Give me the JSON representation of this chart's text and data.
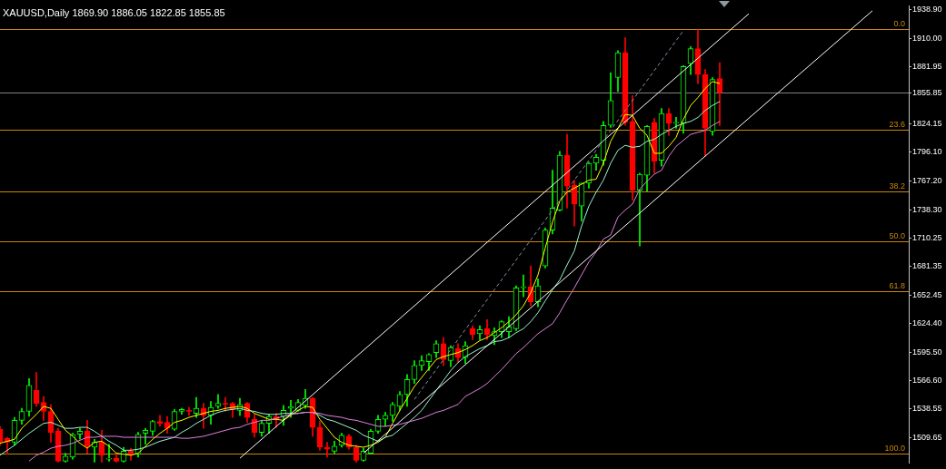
{
  "chart_data": {
    "type": "candlestick",
    "title": "XAUUSD,Daily 1869.90 1886.05 1822.85 1855.85",
    "categories": [
      null,
      null,
      null,
      null,
      null,
      null,
      null,
      null,
      null,
      null,
      null,
      null,
      null,
      null,
      null,
      null,
      null,
      null,
      null,
      null,
      null,
      null,
      null,
      null,
      null,
      null,
      null,
      null,
      null,
      null,
      null,
      null,
      null,
      null,
      null,
      null,
      null,
      null,
      null,
      null,
      null,
      null,
      null,
      null,
      null,
      null,
      null,
      null,
      null,
      null,
      null,
      null,
      null,
      null,
      null,
      null,
      null,
      null,
      null,
      null,
      null,
      null,
      null,
      null,
      null,
      null,
      null,
      null,
      null,
      null,
      null,
      null,
      null,
      null,
      null,
      null,
      null,
      null,
      null,
      null,
      null,
      null,
      null,
      null,
      null,
      null,
      null,
      null,
      null,
      null,
      null,
      null,
      null,
      null,
      null,
      null,
      null,
      null,
      null,
      null,
      null,
      null,
      null,
      null,
      null,
      null,
      null,
      null,
      null,
      null,
      null,
      null,
      null,
      null,
      null,
      null,
      null,
      null,
      null,
      null,
      null,
      null,
      null,
      null,
      null,
      null
    ],
    "ohlc": [
      [
        1518,
        1521,
        1502,
        1505
      ],
      [
        1509,
        1510,
        1493,
        1505
      ],
      [
        1505,
        1530,
        1502,
        1527
      ],
      [
        1527,
        1539,
        1523,
        1536
      ],
      [
        1536,
        1569,
        1531,
        1562
      ],
      [
        1557,
        1575,
        1541,
        1544
      ],
      [
        1545,
        1551,
        1527,
        1536
      ],
      [
        1536,
        1543,
        1505,
        1515
      ],
      [
        1516,
        1519,
        1485,
        1486
      ],
      [
        1486,
        1494,
        1485,
        1491
      ],
      [
        1490,
        1514,
        1488,
        1513
      ],
      [
        1513,
        1519,
        1508,
        1516
      ],
      [
        1516,
        1527,
        1494,
        1501
      ],
      [
        1500,
        1508,
        1485,
        1505
      ],
      [
        1505,
        1517,
        1485,
        1492
      ],
      [
        1488,
        1503,
        1486,
        1489
      ],
      [
        1489,
        1494,
        1485,
        1486
      ],
      [
        1486,
        1500,
        1485,
        1496
      ],
      [
        1496,
        1499,
        1487,
        1493
      ],
      [
        1493,
        1515,
        1490,
        1513
      ],
      [
        1514,
        1519,
        1503,
        1517
      ],
      [
        1516,
        1527,
        1512,
        1526
      ],
      [
        1526,
        1532,
        1521,
        1524
      ],
      [
        1525,
        1531,
        1514,
        1519
      ],
      [
        1518,
        1538,
        1517,
        1536
      ],
      [
        1536,
        1539,
        1533,
        1538
      ],
      [
        1537,
        1540,
        1532,
        1536
      ],
      [
        1534,
        1550,
        1530,
        1539
      ],
      [
        1539,
        1544,
        1519,
        1532
      ],
      [
        1532,
        1546,
        1523,
        1540
      ],
      [
        1541,
        1553,
        1539,
        1544
      ],
      [
        1544,
        1550,
        1536,
        1543
      ],
      [
        1544,
        1545,
        1530,
        1538
      ],
      [
        1537,
        1549,
        1532,
        1543
      ],
      [
        1544,
        1545,
        1525,
        1530
      ],
      [
        1528,
        1533,
        1510,
        1515
      ],
      [
        1515,
        1527,
        1511,
        1524
      ],
      [
        1524,
        1533,
        1514,
        1531
      ],
      [
        1531,
        1534,
        1520,
        1528
      ],
      [
        1531,
        1542,
        1522,
        1537
      ],
      [
        1539,
        1547,
        1530,
        1541
      ],
      [
        1537,
        1548,
        1536,
        1545
      ],
      [
        1542,
        1558,
        1539,
        1549
      ],
      [
        1549,
        1550,
        1511,
        1520
      ],
      [
        1520,
        1526,
        1497,
        1500
      ],
      [
        1500,
        1505,
        1490,
        1498
      ],
      [
        1496,
        1506,
        1494,
        1501
      ],
      [
        1502,
        1514,
        1500,
        1512
      ],
      [
        1511,
        1513,
        1498,
        1500
      ],
      [
        1500,
        1502,
        1485,
        1487
      ],
      [
        1487,
        1499,
        1486,
        1496
      ],
      [
        1494,
        1518,
        1493,
        1516
      ],
      [
        1516,
        1532,
        1514,
        1528
      ],
      [
        1528,
        1535,
        1521,
        1532
      ],
      [
        1532,
        1545,
        1526,
        1543
      ],
      [
        1541,
        1556,
        1537,
        1553
      ],
      [
        1553,
        1573,
        1541,
        1568
      ],
      [
        1568,
        1587,
        1564,
        1582
      ],
      [
        1582,
        1592,
        1577,
        1587
      ],
      [
        1586,
        1594,
        1577,
        1593
      ],
      [
        1595,
        1607,
        1590,
        1604
      ],
      [
        1604,
        1610,
        1582,
        1588
      ],
      [
        1587,
        1602,
        1581,
        1600
      ],
      [
        1599,
        1604,
        1585,
        1590
      ],
      [
        1590,
        1606,
        1584,
        1602
      ],
      [
        1619,
        1622,
        1608,
        1613
      ],
      [
        1614,
        1622,
        1608,
        1618
      ],
      [
        1619,
        1628,
        1608,
        1613
      ],
      [
        1612,
        1620,
        1603,
        1616
      ],
      [
        1616,
        1627,
        1610,
        1626
      ],
      [
        1616,
        1631,
        1610,
        1621
      ],
      [
        1619,
        1662,
        1617,
        1660
      ],
      [
        1660,
        1673,
        1651,
        1661
      ],
      [
        1661,
        1682,
        1642,
        1646
      ],
      [
        1646,
        1669,
        1641,
        1662
      ],
      [
        1682,
        1720,
        1680,
        1718
      ],
      [
        1718,
        1778,
        1714,
        1740
      ],
      [
        1738,
        1797,
        1737,
        1793
      ],
      [
        1793,
        1814,
        1740,
        1762
      ],
      [
        1763,
        1768,
        1722,
        1744
      ],
      [
        1742,
        1765,
        1727,
        1765
      ],
      [
        1765,
        1786,
        1760,
        1785
      ],
      [
        1785,
        1794,
        1778,
        1791
      ],
      [
        1788,
        1827,
        1783,
        1823
      ],
      [
        1823,
        1876,
        1821,
        1848
      ],
      [
        1871,
        1898,
        1857,
        1896
      ],
      [
        1896,
        1911,
        1823,
        1826
      ],
      [
        1827,
        1853,
        1748,
        1758
      ],
      [
        1758,
        1775,
        1702,
        1774
      ],
      [
        1773,
        1823,
        1757,
        1822
      ],
      [
        1826,
        1830,
        1775,
        1787
      ],
      [
        1788,
        1840,
        1782,
        1835
      ],
      [
        1835,
        1840,
        1813,
        1825
      ],
      [
        1825,
        1831,
        1820,
        1826
      ],
      [
        1825,
        1883,
        1815,
        1882
      ],
      [
        1885,
        1902,
        1874,
        1900
      ],
      [
        1900,
        1919,
        1865,
        1874
      ],
      [
        1874,
        1879,
        1792,
        1820
      ],
      [
        1817,
        1871,
        1813,
        1869
      ],
      [
        1869.9,
        1886.05,
        1822.85,
        1855.85
      ],
      null,
      null,
      null,
      null,
      null,
      null,
      null,
      null,
      null,
      null,
      null,
      null,
      null,
      null,
      null,
      null,
      null,
      null,
      null,
      null,
      null,
      null,
      null,
      null,
      null,
      null
    ],
    "colors": [
      "#ff0000",
      "#ff0000",
      "#00ff00",
      "#00ff00",
      "#00ff00",
      "#ff0000",
      "#ff0000",
      "#ff0000",
      "#ff0000",
      "#00ff00",
      "#00ff00",
      "#00ff00",
      "#ff0000",
      "#00ff00",
      "#ff0000",
      "#00ff00",
      "#ff0000",
      "#00ff00",
      "#ff0000",
      "#00ff00",
      "#00ff00",
      "#00ff00",
      "#ff0000",
      "#ff0000",
      "#00ff00",
      "#00ff00",
      "#ff0000",
      "#00ff00",
      "#ff0000",
      "#00ff00",
      "#00ff00",
      "#ff0000",
      "#ff0000",
      "#00ff00",
      "#ff0000",
      "#ff0000",
      "#00ff00",
      "#00ff00",
      "#ff0000",
      "#00ff00",
      "#00ff00",
      "#00ff00",
      "#00ff00",
      "#ff0000",
      "#ff0000",
      "#ff0000",
      "#00ff00",
      "#00ff00",
      "#ff0000",
      "#ff0000",
      "#00ff00",
      "#00ff00",
      "#00ff00",
      "#00ff00",
      "#00ff00",
      "#00ff00",
      "#00ff00",
      "#00ff00",
      "#00ff00",
      "#00ff00",
      "#00ff00",
      "#ff0000",
      "#00ff00",
      "#ff0000",
      "#00ff00",
      "#ff0000",
      "#00ff00",
      "#ff0000",
      "#00ff00",
      "#00ff00",
      "#00ff00",
      "#00ff00",
      "#00ff00",
      "#ff0000",
      "#00ff00",
      "#00ff00",
      "#00ff00",
      "#00ff00",
      "#ff0000",
      "#ff0000",
      "#00ff00",
      "#00ff00",
      "#00ff00",
      "#00ff00",
      "#00ff00",
      "#00ff00",
      "#ff0000",
      "#ff0000",
      "#00ff00",
      "#00ff00",
      "#ff0000",
      "#00ff00",
      "#ff0000",
      "#00ff00",
      "#00ff00",
      "#00ff00",
      "#ff0000",
      "#ff0000",
      "#00ff00",
      "#ff0000",
      null,
      null,
      null,
      null,
      null,
      null,
      null,
      null,
      null,
      null,
      null,
      null,
      null,
      null,
      null,
      null,
      null,
      null,
      null,
      null,
      null,
      null,
      null,
      null,
      null,
      null
    ],
    "series": [
      {
        "type": "line",
        "color": "#ffff00",
        "values": [
          1504,
          1506,
          1508,
          1519,
          1526,
          1533,
          1541,
          1539,
          1528,
          1517,
          1511,
          1504,
          1499,
          1505,
          1506,
          1501,
          1494,
          1493,
          1492,
          1494,
          1501,
          1508,
          1514,
          1519,
          1525,
          1527,
          1530,
          1532,
          1534,
          1536,
          1537,
          1539,
          1540,
          1541,
          1539,
          1534,
          1531,
          1528,
          1528,
          1527,
          1532,
          1537,
          1541,
          1540,
          1528,
          1519,
          1510,
          1505,
          1502,
          1501,
          1500,
          1502,
          1505,
          1510,
          1524,
          1537,
          1549,
          1561,
          1570,
          1579,
          1588,
          1591,
          1593,
          1595,
          1598,
          1602,
          1607,
          1610,
          1615,
          1620,
          1626,
          1633,
          1642,
          1655,
          1673,
          1700,
          1726,
          1747,
          1756,
          1760,
          1764,
          1768,
          1769,
          1785,
          1807,
          1820,
          1834,
          1833,
          1820,
          1813,
          1795,
          1795,
          1802,
          1811,
          1829,
          1843,
          1851,
          1860,
          1867,
          1865,
          null,
          null,
          null,
          null,
          null,
          null,
          null,
          null,
          null,
          null,
          null,
          null,
          null,
          null,
          null,
          null,
          null,
          null,
          null,
          null,
          null,
          null,
          null,
          null,
          null,
          null
        ]
      },
      {
        "type": "line",
        "color": "#98f5d0",
        "values": [
          1492,
          1497,
          1502,
          1508,
          1514,
          1519,
          1524,
          1525,
          1522,
          1519,
          1519,
          1520,
          1520,
          1516,
          1511,
          1506,
          1502,
          1497,
          1497,
          1498,
          1500,
          1503,
          1506,
          1508,
          1510,
          1515,
          1519,
          1524,
          1528,
          1532,
          1535,
          1537,
          1538,
          1539,
          1537,
          1536,
          1534,
          1533,
          1533,
          1534,
          1534,
          1534,
          1535,
          1535,
          1532,
          1528,
          1526,
          1523,
          1520,
          1517,
          1512,
          1509,
          1506,
          1510,
          1512,
          1518,
          1524,
          1530,
          1537,
          1547,
          1557,
          1567,
          1577,
          1585,
          1591,
          1595,
          1599,
          1602,
          1606,
          1607,
          1610,
          1615,
          1619,
          1626,
          1635,
          1647,
          1658,
          1668,
          1683,
          1697,
          1722,
          1742,
          1756,
          1768,
          1785,
          1798,
          1803,
          1801,
          1802,
          1807,
          1809,
          1814,
          1818,
          1822,
          1825,
          1827,
          1831,
          1838,
          1843,
          1847,
          null,
          null,
          null,
          null,
          null,
          null,
          null,
          null,
          null,
          null,
          null,
          null,
          null,
          null,
          null,
          null,
          null,
          null,
          null,
          null,
          null,
          null,
          null,
          null,
          null,
          null
        ]
      },
      {
        "type": "line",
        "color": "#e080e0",
        "values": [
          null,
          null,
          null,
          null,
          1486,
          1492,
          1495,
          1499,
          1501,
          1502,
          1504,
          1507,
          1510,
          1510,
          1511,
          1511,
          1511,
          1510,
          1510,
          1510,
          1510,
          1510,
          1510,
          1510,
          1510,
          1509,
          1509,
          1510,
          1511,
          1513,
          1515,
          1517,
          1519,
          1520,
          1523,
          1525,
          1527,
          1527,
          1529,
          1531,
          1533,
          1534,
          1535,
          1535,
          1534,
          1532,
          1531,
          1530,
          1528,
          1527,
          1525,
          1523,
          1521,
          1521,
          1522,
          1523,
          1525,
          1527,
          1529,
          1532,
          1535,
          1537,
          1540,
          1543,
          1551,
          1555,
          1559,
          1564,
          1571,
          1578,
          1586,
          1594,
          1600,
          1607,
          1614,
          1619,
          1624,
          1635,
          1648,
          1660,
          1673,
          1686,
          1696,
          1709,
          1713,
          1731,
          1738,
          1744,
          1759,
          1767,
          1774,
          1778,
          1792,
          1802,
          1808,
          1814,
          1816,
          1818,
          1823,
          1827,
          null,
          null,
          null,
          null,
          null,
          null,
          null,
          null,
          null,
          null,
          null,
          null,
          null,
          null,
          null,
          null,
          null,
          null,
          null,
          null,
          null,
          null,
          null,
          null,
          null,
          null
        ]
      },
      {
        "type": "line",
        "color": "#ffffff",
        "values": [
          null,
          null,
          null,
          null,
          null,
          null,
          null,
          null,
          null,
          null,
          null,
          null,
          null,
          null,
          null,
          null,
          null,
          null,
          null,
          null,
          null,
          null,
          null,
          null,
          null,
          null,
          null,
          null,
          null,
          null,
          null,
          null,
          null,
          1489,
          null,
          null,
          null,
          null,
          null,
          null,
          null,
          null,
          null,
          null,
          null,
          null,
          null,
          null,
          null,
          null,
          null,
          null,
          null,
          null,
          null,
          null,
          null,
          null,
          null,
          null,
          null,
          null,
          null,
          null,
          null,
          null,
          null,
          null,
          null,
          null,
          null,
          null,
          null,
          null,
          null,
          null,
          null,
          null,
          null,
          null,
          null,
          null,
          null,
          null,
          null,
          null,
          null,
          null,
          null,
          null,
          null,
          null,
          null,
          null,
          null,
          null,
          null,
          null,
          null,
          null,
          null,
          null,
          null,
          1935,
          null,
          null,
          null,
          null,
          null,
          null,
          null,
          null,
          null,
          null,
          null,
          null,
          null,
          null,
          null,
          null,
          null,
          null,
          null,
          null,
          null,
          null
        ]
      },
      {
        "type": "line",
        "color": "#ffffff",
        "values": [
          null,
          null,
          null,
          null,
          null,
          null,
          null,
          null,
          null,
          null,
          null,
          null,
          null,
          null,
          null,
          null,
          null,
          null,
          null,
          null,
          null,
          null,
          null,
          null,
          null,
          null,
          null,
          null,
          null,
          null,
          null,
          null,
          null,
          null,
          null,
          null,
          null,
          null,
          null,
          null,
          null,
          null,
          null,
          null,
          null,
          null,
          null,
          null,
          null,
          null,
          1494,
          null,
          null,
          null,
          null,
          null,
          null,
          null,
          null,
          null,
          null,
          null,
          null,
          null,
          null,
          null,
          null,
          null,
          null,
          null,
          null,
          null,
          null,
          null,
          null,
          null,
          null,
          null,
          null,
          null,
          null,
          null,
          null,
          null,
          null,
          null,
          null,
          null,
          null,
          null,
          null,
          null,
          null,
          null,
          null,
          null,
          null,
          null,
          null,
          null,
          null,
          null,
          null,
          null,
          null,
          null,
          null,
          null,
          null,
          null,
          null,
          null,
          null,
          null,
          null,
          null,
          null,
          null,
          null,
          null,
          1938,
          null,
          null,
          null,
          null,
          null
        ]
      },
      {
        "type": "line",
        "color": "#8090a8",
        "line_style": "dashed",
        "values": [
          null,
          null,
          null,
          null,
          null,
          null,
          null,
          null,
          null,
          null,
          null,
          null,
          null,
          null,
          null,
          null,
          null,
          null,
          null,
          null,
          null,
          null,
          null,
          null,
          null,
          null,
          null,
          null,
          null,
          null,
          null,
          null,
          null,
          null,
          null,
          null,
          null,
          null,
          null,
          null,
          null,
          null,
          null,
          null,
          null,
          null,
          null,
          null,
          null,
          null,
          null,
          null,
          null,
          null,
          null,
          null,
          null,
          1548,
          null,
          null,
          null,
          null,
          null,
          null,
          null,
          null,
          null,
          null,
          null,
          null,
          null,
          null,
          null,
          null,
          null,
          null,
          null,
          null,
          null,
          null,
          null,
          null,
          null,
          null,
          null,
          null,
          null,
          null,
          null,
          null,
          null,
          null,
          null,
          null,
          1918,
          null,
          null,
          null,
          null,
          null,
          null,
          null,
          null,
          null,
          null,
          null,
          null,
          null,
          null,
          null,
          null,
          null,
          null,
          null,
          null,
          null,
          null,
          null,
          null,
          null,
          null,
          null,
          null,
          null,
          null,
          null
        ]
      }
    ],
    "ylim": [
      1484,
      1943
    ],
    "yticks": [
      {
        "value": 1509.65,
        "label": "1509.65"
      },
      {
        "value": 1538.55,
        "label": "1538.55"
      },
      {
        "value": 1566.6,
        "label": "1566.60"
      },
      {
        "value": 1595.5,
        "label": "1595.50"
      },
      {
        "value": 1624.4,
        "label": "1624.40"
      },
      {
        "value": 1652.45,
        "label": "1652.45"
      },
      {
        "value": 1681.35,
        "label": "1681.35"
      },
      {
        "value": 1710.25,
        "label": "1710.25"
      },
      {
        "value": 1738.3,
        "label": "1738.30"
      },
      {
        "value": 1767.2,
        "label": "1767.20"
      },
      {
        "value": 1796.1,
        "label": "1796.10"
      },
      {
        "value": 1824.15,
        "label": "1824.15"
      },
      {
        "value": 1855.85,
        "label": "1855.85"
      },
      {
        "value": 1881.95,
        "label": "1881.95"
      },
      {
        "value": 1910,
        "label": "1910.00"
      },
      {
        "value": 1938.9,
        "label": "1938.90"
      }
    ],
    "annotations": [
      {
        "text": "0.0",
        "y": 1919.3
      },
      {
        "text": "23.6",
        "y": 1818.8
      },
      {
        "text": "38.2",
        "y": 1756.7
      },
      {
        "text": "50.0",
        "y": 1706.5
      },
      {
        "text": "61.8",
        "y": 1656.2
      },
      {
        "text": "100.0",
        "y": 1493.6
      }
    ],
    "ref_lines": [
      {
        "axis": "y",
        "value": 1919.3,
        "color": "#c8860a"
      },
      {
        "axis": "y",
        "value": 1818.8,
        "color": "#c8860a"
      },
      {
        "axis": "y",
        "value": 1756.7,
        "color": "#c8860a"
      },
      {
        "axis": "y",
        "value": 1706.5,
        "color": "#c8860a"
      },
      {
        "axis": "y",
        "value": 1656.2,
        "color": "#c8860a"
      },
      {
        "axis": "y",
        "value": 1493.6,
        "color": "#c8860a"
      },
      {
        "axis": "y",
        "value": 1855.85,
        "color": "#808080"
      }
    ],
    "tick_labels": "y"
  }
}
